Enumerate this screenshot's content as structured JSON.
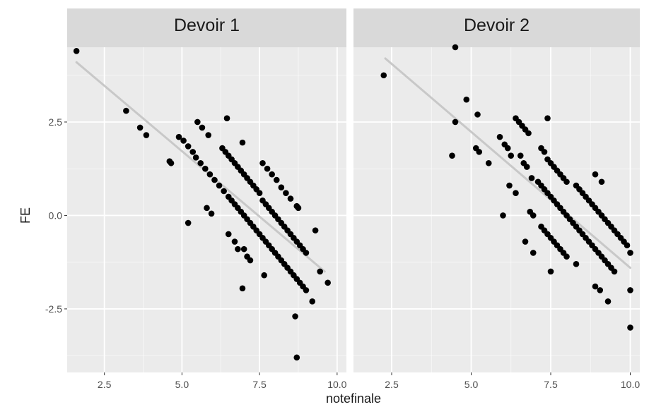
{
  "chart_data": {
    "type": "scatter",
    "xlabel": "notefinale",
    "ylabel": "FE",
    "x_ticks": [
      2.5,
      5.0,
      7.5,
      10.0
    ],
    "x_tick_labels": [
      "2.5",
      "5.0",
      "7.5",
      "10.0"
    ],
    "y_ticks": [
      -2.5,
      0.0,
      2.5
    ],
    "y_tick_labels": [
      "-2.5",
      "0.0",
      "2.5"
    ],
    "xlim": [
      1.3,
      10.3
    ],
    "ylim": [
      -4.2,
      4.5
    ],
    "grid": true,
    "colors": {
      "panel_bg": "#ebebeb",
      "strip_bg": "#d9d9d9",
      "grid": "#ffffff",
      "point": "#000000",
      "trend": "#c8c8c8",
      "text": "#1a1a1a",
      "tick_text": "#4d4d4d"
    },
    "panels": [
      {
        "title": "Devoir 1",
        "trend": [
          [
            1.6,
            4.1
          ],
          [
            9.6,
            -1.5
          ]
        ],
        "points": [
          [
            1.6,
            4.4
          ],
          [
            3.2,
            2.8
          ],
          [
            3.65,
            2.35
          ],
          [
            3.85,
            2.15
          ],
          [
            4.6,
            1.45
          ],
          [
            4.65,
            1.4
          ],
          [
            4.9,
            2.1
          ],
          [
            5.05,
            2.0
          ],
          [
            5.2,
            1.85
          ],
          [
            5.35,
            1.7
          ],
          [
            5.5,
            2.5
          ],
          [
            5.65,
            2.35
          ],
          [
            5.85,
            2.15
          ],
          [
            5.2,
            -0.2
          ],
          [
            5.8,
            0.2
          ],
          [
            5.95,
            0.05
          ],
          [
            5.45,
            1.55
          ],
          [
            5.6,
            1.4
          ],
          [
            5.75,
            1.25
          ],
          [
            5.9,
            1.1
          ],
          [
            6.05,
            0.95
          ],
          [
            6.2,
            0.8
          ],
          [
            6.35,
            0.65
          ],
          [
            6.45,
            2.6
          ],
          [
            6.3,
            1.8
          ],
          [
            6.4,
            1.7
          ],
          [
            6.5,
            1.6
          ],
          [
            6.6,
            1.5
          ],
          [
            6.7,
            1.4
          ],
          [
            6.8,
            1.3
          ],
          [
            6.9,
            1.2
          ],
          [
            7.0,
            1.1
          ],
          [
            7.1,
            1.0
          ],
          [
            7.2,
            0.9
          ],
          [
            7.3,
            0.8
          ],
          [
            7.4,
            0.7
          ],
          [
            7.5,
            0.6
          ],
          [
            6.5,
            0.5
          ],
          [
            6.6,
            0.4
          ],
          [
            6.7,
            0.3
          ],
          [
            6.8,
            0.2
          ],
          [
            6.9,
            0.1
          ],
          [
            7.0,
            0.0
          ],
          [
            7.1,
            -0.1
          ],
          [
            7.2,
            -0.2
          ],
          [
            7.3,
            -0.3
          ],
          [
            7.4,
            -0.4
          ],
          [
            7.5,
            -0.5
          ],
          [
            7.6,
            -0.6
          ],
          [
            7.7,
            -0.7
          ],
          [
            7.8,
            -0.8
          ],
          [
            7.9,
            -0.9
          ],
          [
            8.0,
            -1.0
          ],
          [
            8.1,
            -1.1
          ],
          [
            8.2,
            -1.2
          ],
          [
            8.3,
            -1.3
          ],
          [
            8.4,
            -1.4
          ],
          [
            8.5,
            -1.5
          ],
          [
            8.6,
            -1.6
          ],
          [
            8.7,
            -1.7
          ],
          [
            8.8,
            -1.8
          ],
          [
            8.9,
            -1.9
          ],
          [
            9.0,
            -2.0
          ],
          [
            7.6,
            0.4
          ],
          [
            7.7,
            0.3
          ],
          [
            7.8,
            0.2
          ],
          [
            7.9,
            0.1
          ],
          [
            8.0,
            0.0
          ],
          [
            8.1,
            -0.1
          ],
          [
            8.2,
            -0.2
          ],
          [
            8.3,
            -0.3
          ],
          [
            8.4,
            -0.4
          ],
          [
            8.5,
            -0.5
          ],
          [
            8.6,
            -0.6
          ],
          [
            8.7,
            -0.7
          ],
          [
            8.8,
            -0.8
          ],
          [
            8.9,
            -0.9
          ],
          [
            9.0,
            -1.0
          ],
          [
            7.6,
            1.4
          ],
          [
            7.75,
            1.25
          ],
          [
            7.9,
            1.1
          ],
          [
            8.05,
            0.95
          ],
          [
            8.2,
            0.75
          ],
          [
            8.35,
            0.6
          ],
          [
            8.5,
            0.45
          ],
          [
            8.7,
            0.25
          ],
          [
            8.75,
            0.2
          ],
          [
            6.95,
            1.95
          ],
          [
            6.5,
            -0.5
          ],
          [
            6.7,
            -0.7
          ],
          [
            6.8,
            -0.9
          ],
          [
            7.0,
            -0.9
          ],
          [
            7.1,
            -1.1
          ],
          [
            7.2,
            -1.2
          ],
          [
            6.95,
            -1.95
          ],
          [
            7.65,
            -1.6
          ],
          [
            8.65,
            -2.7
          ],
          [
            8.7,
            -3.8
          ],
          [
            9.2,
            -2.3
          ],
          [
            9.3,
            -0.4
          ],
          [
            9.45,
            -1.5
          ],
          [
            9.7,
            -1.8
          ]
        ]
      },
      {
        "title": "Devoir 2",
        "trend": [
          [
            2.3,
            4.2
          ],
          [
            10.0,
            -1.4
          ]
        ],
        "points": [
          [
            2.25,
            3.75
          ],
          [
            4.5,
            4.5
          ],
          [
            4.4,
            1.6
          ],
          [
            4.5,
            2.5
          ],
          [
            4.85,
            3.1
          ],
          [
            5.2,
            2.7
          ],
          [
            5.15,
            1.8
          ],
          [
            5.25,
            1.7
          ],
          [
            5.55,
            1.4
          ],
          [
            5.9,
            2.1
          ],
          [
            6.05,
            1.9
          ],
          [
            6.15,
            1.8
          ],
          [
            6.25,
            1.6
          ],
          [
            6.0,
            0.0
          ],
          [
            6.2,
            0.8
          ],
          [
            6.4,
            0.6
          ],
          [
            6.4,
            2.6
          ],
          [
            6.5,
            2.5
          ],
          [
            6.6,
            2.4
          ],
          [
            6.7,
            2.3
          ],
          [
            6.8,
            2.2
          ],
          [
            6.55,
            1.6
          ],
          [
            6.65,
            1.4
          ],
          [
            6.75,
            1.3
          ],
          [
            6.9,
            1.0
          ],
          [
            6.7,
            -0.7
          ],
          [
            6.85,
            0.1
          ],
          [
            6.95,
            0.0
          ],
          [
            6.95,
            -1.0
          ],
          [
            7.1,
            0.9
          ],
          [
            7.2,
            0.8
          ],
          [
            7.3,
            0.7
          ],
          [
            7.4,
            0.6
          ],
          [
            7.5,
            0.5
          ],
          [
            7.6,
            0.4
          ],
          [
            7.7,
            0.3
          ],
          [
            7.8,
            0.2
          ],
          [
            7.9,
            0.1
          ],
          [
            8.0,
            0.0
          ],
          [
            8.1,
            -0.1
          ],
          [
            8.2,
            -0.2
          ],
          [
            8.3,
            -0.3
          ],
          [
            8.4,
            -0.4
          ],
          [
            8.5,
            -0.5
          ],
          [
            8.6,
            -0.6
          ],
          [
            8.7,
            -0.7
          ],
          [
            8.8,
            -0.8
          ],
          [
            8.9,
            -0.9
          ],
          [
            9.0,
            -1.0
          ],
          [
            9.1,
            -1.1
          ],
          [
            9.2,
            -1.2
          ],
          [
            9.3,
            -1.3
          ],
          [
            9.4,
            -1.4
          ],
          [
            9.5,
            -1.5
          ],
          [
            7.2,
            1.8
          ],
          [
            7.3,
            1.7
          ],
          [
            7.4,
            1.5
          ],
          [
            7.5,
            1.4
          ],
          [
            7.6,
            1.3
          ],
          [
            7.7,
            1.2
          ],
          [
            7.8,
            1.1
          ],
          [
            7.9,
            1.0
          ],
          [
            8.0,
            0.9
          ],
          [
            8.3,
            0.8
          ],
          [
            8.4,
            0.7
          ],
          [
            8.5,
            0.6
          ],
          [
            8.6,
            0.5
          ],
          [
            8.7,
            0.4
          ],
          [
            8.8,
            0.3
          ],
          [
            8.9,
            0.2
          ],
          [
            9.0,
            0.1
          ],
          [
            9.1,
            0.0
          ],
          [
            9.2,
            -0.1
          ],
          [
            9.3,
            -0.2
          ],
          [
            9.4,
            -0.3
          ],
          [
            9.5,
            -0.4
          ],
          [
            9.6,
            -0.5
          ],
          [
            9.7,
            -0.6
          ],
          [
            9.8,
            -0.7
          ],
          [
            9.9,
            -0.8
          ],
          [
            10.0,
            -1.0
          ],
          [
            7.2,
            -0.3
          ],
          [
            7.3,
            -0.4
          ],
          [
            7.4,
            -0.5
          ],
          [
            7.5,
            -0.6
          ],
          [
            7.6,
            -0.7
          ],
          [
            7.7,
            -0.8
          ],
          [
            7.8,
            -0.9
          ],
          [
            7.9,
            -1.0
          ],
          [
            8.0,
            -1.1
          ],
          [
            7.4,
            2.6
          ],
          [
            7.5,
            -1.5
          ],
          [
            8.3,
            -1.3
          ],
          [
            8.9,
            1.1
          ],
          [
            9.1,
            0.9
          ],
          [
            8.9,
            -1.9
          ],
          [
            9.05,
            -2.0
          ],
          [
            9.3,
            -2.3
          ],
          [
            10.0,
            -2.0
          ],
          [
            10.0,
            -3.0
          ]
        ]
      }
    ]
  }
}
